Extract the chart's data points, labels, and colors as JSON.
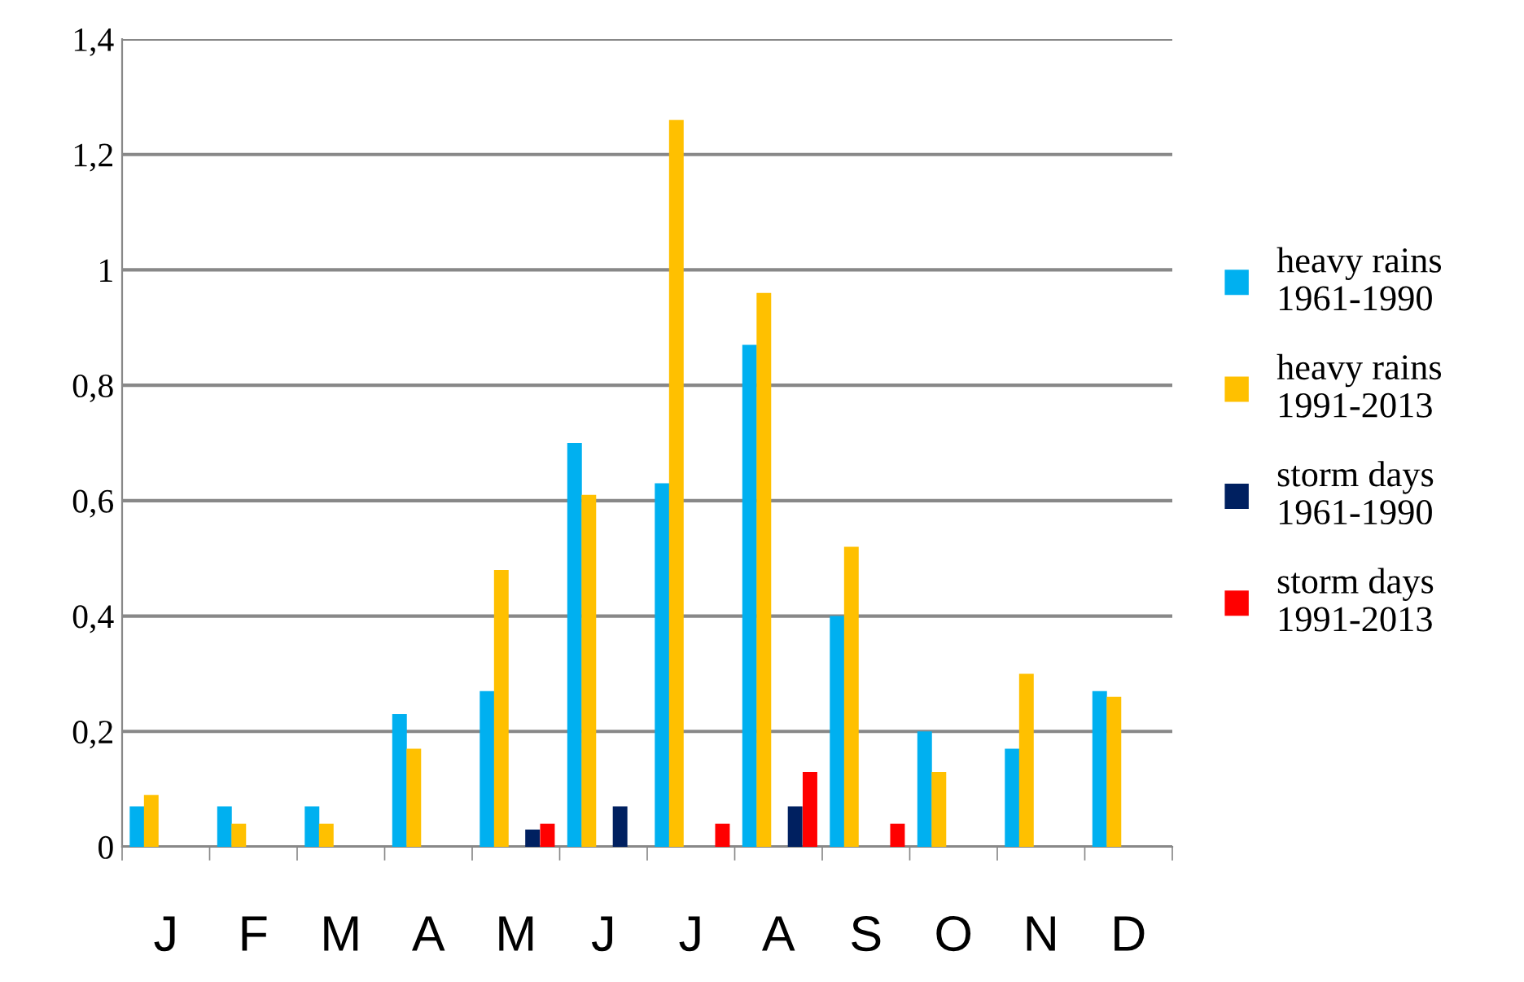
{
  "chart_data": {
    "type": "bar",
    "categories": [
      "J",
      "F",
      "M",
      "A",
      "M",
      "J",
      "J",
      "A",
      "S",
      "O",
      "N",
      "D"
    ],
    "series": [
      {
        "name": "heavy rains\n1961-1990",
        "color": "#00b0f0",
        "values": [
          0.07,
          0.07,
          0.07,
          0.23,
          0.27,
          0.7,
          0.63,
          0.87,
          0.4,
          0.2,
          0.17,
          0.27
        ]
      },
      {
        "name": "heavy rains\n1991-2013",
        "color": "#ffc000",
        "values": [
          0.09,
          0.04,
          0.04,
          0.17,
          0.48,
          0.61,
          1.26,
          0.96,
          0.52,
          0.13,
          0.3,
          0.26
        ]
      },
      {
        "name": "storm days\n1961-1990",
        "color": "#002060",
        "values": [
          0,
          0,
          0,
          0,
          0.03,
          0.07,
          0,
          0.07,
          0,
          0,
          0,
          0
        ]
      },
      {
        "name": "storm days\n1991-2013",
        "color": "#ff0000",
        "values": [
          0,
          0,
          0,
          0,
          0.04,
          0,
          0.04,
          0.13,
          0.04,
          0,
          0,
          0
        ]
      }
    ],
    "ylim": [
      0,
      1.4
    ],
    "yticks": [
      0,
      {
        "value": 0.2,
        "label": "0,2"
      },
      {
        "value": 0.4,
        "label": "0,4"
      },
      {
        "value": 0.6,
        "label": "0,6"
      },
      {
        "value": 0.8,
        "label": "0,8"
      },
      1,
      {
        "value": 1.2,
        "label": "1,2"
      },
      {
        "value": 1.4,
        "label": "1,4"
      }
    ],
    "grid": "y",
    "legend": "right"
  }
}
